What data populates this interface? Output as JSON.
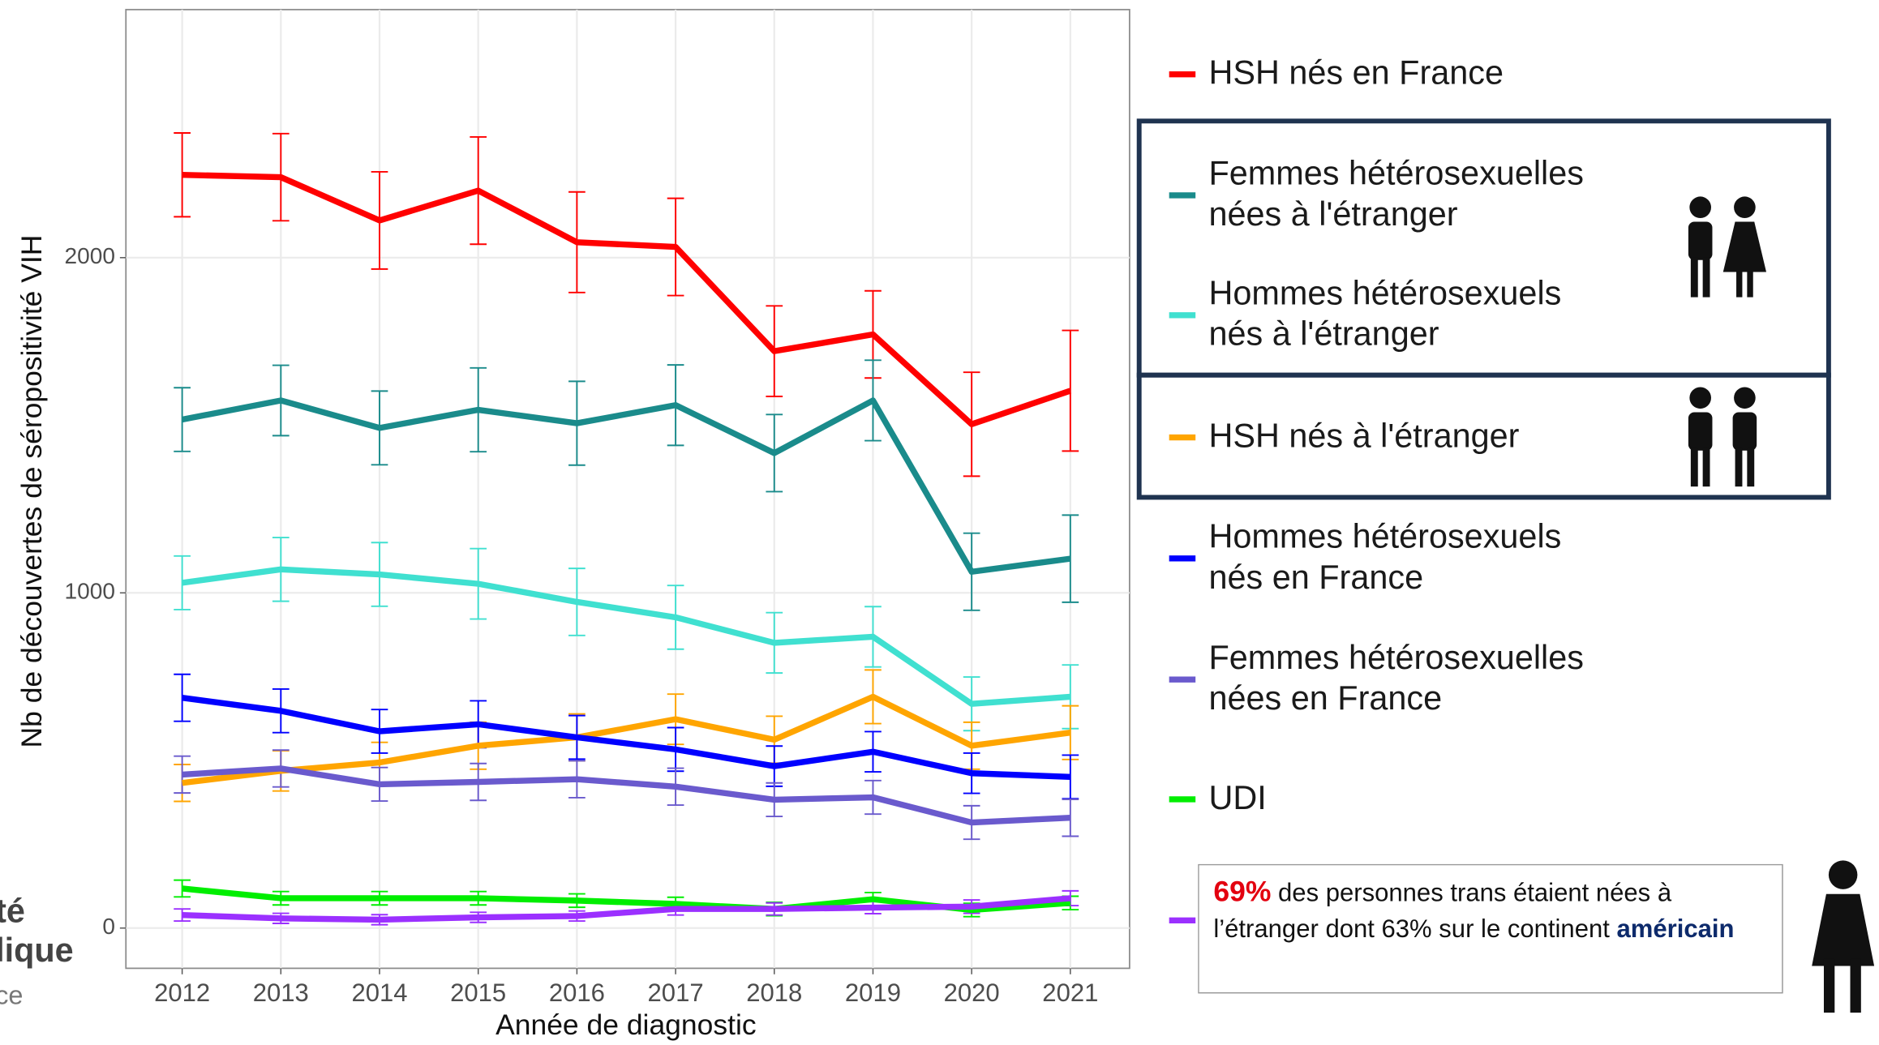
{
  "chart_data": {
    "type": "line",
    "x_label": "Année de diagnostic",
    "y_label": "Nb de découvertes de séropositivité VIH",
    "x": [
      2012,
      2013,
      2014,
      2015,
      2016,
      2017,
      2018,
      2019,
      2020,
      2021
    ],
    "xlim": [
      2011.43,
      2021.6
    ],
    "xticks": [
      2012,
      2013,
      2014,
      2015,
      2016,
      2017,
      2018,
      2019,
      2020,
      2021
    ],
    "ylim": [
      -120,
      2740
    ],
    "yticks": [
      0,
      1000,
      2000
    ],
    "grid": true,
    "series": [
      {
        "name": "HSH nés en France",
        "color": "#ff0000",
        "values": [
          2247,
          2240,
          2111,
          2200,
          2046,
          2032,
          1721,
          1771,
          1503,
          1603
        ],
        "errors": [
          125,
          130,
          145,
          160,
          150,
          145,
          135,
          130,
          155,
          180
        ]
      },
      {
        "name": "Femmes hétérosexuelles\nnées à l'étranger",
        "color": "#1a8b8b",
        "values": [
          1517,
          1574,
          1492,
          1546,
          1506,
          1560,
          1417,
          1574,
          1063,
          1102
        ],
        "errors": [
          95,
          105,
          110,
          125,
          125,
          120,
          115,
          120,
          115,
          130
        ]
      },
      {
        "name": "Hommes hétérosexuels\nnés à l'étranger",
        "color": "#40e0d0",
        "values": [
          1030,
          1070,
          1055,
          1027,
          973,
          927,
          851,
          869,
          669,
          690
        ],
        "errors": [
          80,
          95,
          95,
          105,
          100,
          95,
          90,
          90,
          80,
          95
        ]
      },
      {
        "name": "HSH nés à l'étranger",
        "color": "#ffa500",
        "values": [
          433,
          469,
          494,
          544,
          569,
          623,
          562,
          690,
          544,
          583
        ],
        "errors": [
          55,
          60,
          60,
          70,
          70,
          75,
          70,
          80,
          70,
          80
        ]
      },
      {
        "name": "Hommes hétérosexuels\nnés en France",
        "color": "#0000ff",
        "values": [
          687,
          648,
          587,
          608,
          569,
          533,
          483,
          526,
          462,
          451
        ],
        "errors": [
          70,
          65,
          65,
          70,
          65,
          65,
          60,
          60,
          60,
          65
        ]
      },
      {
        "name": "Femmes hétérosexuelles\nnées en France",
        "color": "#6a5acd",
        "values": [
          458,
          476,
          429,
          436,
          444,
          422,
          383,
          390,
          315,
          329
        ],
        "errors": [
          55,
          55,
          50,
          55,
          55,
          55,
          50,
          50,
          50,
          55
        ]
      },
      {
        "name": "UDI",
        "color": "#00ee00",
        "values": [
          118,
          89,
          89,
          89,
          82,
          72,
          57,
          86,
          54,
          75
        ],
        "errors": [
          25,
          20,
          20,
          20,
          20,
          20,
          20,
          20,
          20,
          20
        ]
      },
      {
        "color": "#9b30ff",
        "values": [
          39,
          29,
          25,
          32,
          36,
          57,
          57,
          61,
          64,
          89
        ],
        "errors": [
          18,
          15,
          15,
          15,
          15,
          18,
          18,
          18,
          20,
          22
        ]
      }
    ],
    "annotation": {
      "highlight": "69%",
      "text": " des personnes trans étaient nées à l’étranger dont 63% sur le continent ",
      "emphasis": "américain"
    }
  },
  "logo": [
    "té",
    "lique",
    "ce"
  ]
}
